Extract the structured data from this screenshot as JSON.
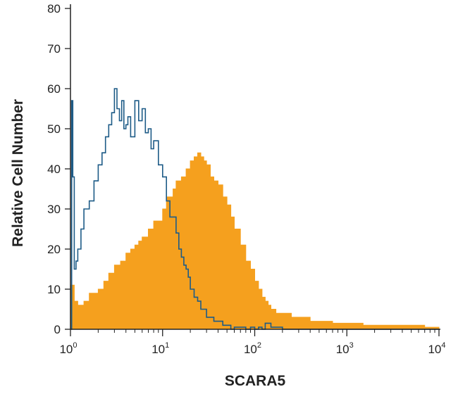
{
  "chart_data": {
    "type": "area",
    "title": "",
    "xlabel": "SCARA5",
    "ylabel": "Relative Cell Number",
    "x_scale": "log",
    "xlim": [
      1,
      10000
    ],
    "ylim": [
      0,
      80
    ],
    "x_ticks": [
      {
        "value": 1,
        "base": "10",
        "exp": "0"
      },
      {
        "value": 10,
        "base": "10",
        "exp": "1"
      },
      {
        "value": 100,
        "base": "10",
        "exp": "2"
      },
      {
        "value": 1000,
        "base": "10",
        "exp": "3"
      },
      {
        "value": 10000,
        "base": "10",
        "exp": "4"
      }
    ],
    "y_ticks": [
      "0",
      "10",
      "20",
      "30",
      "40",
      "50",
      "60",
      "70",
      "80"
    ],
    "grid": false,
    "legend": "none",
    "colors": {
      "filled": "#f5a01e",
      "outline": "#1d5b87",
      "axis": "#222222"
    },
    "series": [
      {
        "style": "filled",
        "x": [
          1,
          1.1,
          1.2,
          1.4,
          1.6,
          1.8,
          2,
          2.3,
          2.6,
          3,
          3.5,
          4,
          4.5,
          5,
          5.5,
          6,
          7,
          8,
          9,
          10,
          11,
          12,
          13,
          14,
          15,
          16,
          18,
          20,
          22,
          24,
          26,
          28,
          30,
          33,
          36,
          40,
          45,
          50,
          55,
          60,
          70,
          80,
          90,
          100,
          110,
          120,
          130,
          140,
          150,
          170,
          200,
          250,
          300,
          400,
          500,
          700,
          1000,
          1500,
          2000,
          3000,
          5000,
          7000,
          10000
        ],
        "y": [
          11,
          7,
          6,
          7,
          9,
          9,
          10,
          12,
          14,
          16,
          17,
          19,
          20,
          21,
          22,
          23,
          25,
          27,
          27,
          30,
          33,
          33,
          35,
          37,
          37,
          38,
          40,
          42,
          43,
          44,
          43,
          42,
          41,
          38,
          37,
          36,
          33,
          31,
          28,
          25,
          21,
          17,
          15,
          12,
          10,
          8,
          7,
          6,
          5,
          4,
          4,
          3,
          3,
          2,
          2,
          1.5,
          1.5,
          1,
          1,
          1,
          1,
          0.5,
          0
        ]
      },
      {
        "style": "outline",
        "x": [
          1,
          1.03,
          1.06,
          1.1,
          1.15,
          1.2,
          1.3,
          1.4,
          1.5,
          1.6,
          1.8,
          2,
          2.2,
          2.4,
          2.6,
          2.8,
          3,
          3.2,
          3.4,
          3.6,
          3.8,
          4,
          4.2,
          4.5,
          5,
          5.5,
          6,
          6.5,
          7,
          7.5,
          8,
          9,
          10,
          11,
          12,
          13,
          14,
          15,
          16,
          17,
          18,
          19,
          20,
          22,
          24,
          26,
          28,
          30,
          33,
          36,
          40,
          45,
          50,
          55,
          60,
          70,
          80,
          90,
          100,
          110,
          120,
          130,
          150,
          200,
          300,
          1000,
          10000
        ],
        "y": [
          0,
          57,
          38,
          15,
          17,
          20,
          25,
          30,
          30,
          32,
          37,
          41,
          44,
          48,
          51,
          54,
          60,
          55,
          52,
          57,
          50,
          51,
          53,
          48,
          57,
          52,
          55,
          49,
          50,
          45,
          47,
          41,
          38,
          32,
          28,
          28,
          24,
          20,
          18,
          16,
          15,
          13,
          10,
          8,
          7,
          5,
          5,
          3,
          3,
          2,
          2,
          1,
          1,
          0,
          0.5,
          0.5,
          0,
          0.5,
          0,
          0.5,
          0,
          1.5,
          0.5,
          0,
          0,
          0,
          0
        ]
      }
    ]
  }
}
